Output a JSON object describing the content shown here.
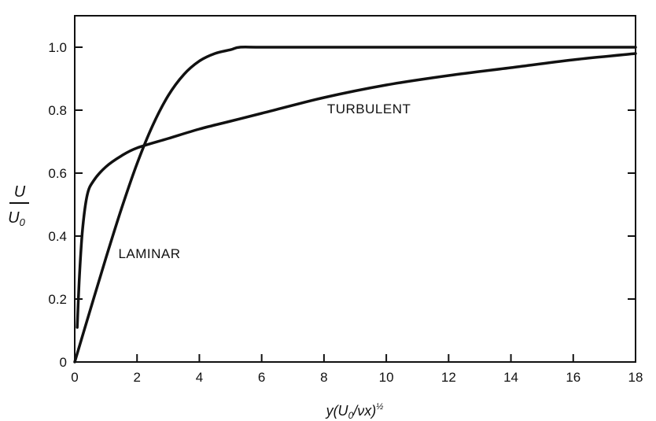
{
  "chart_data": {
    "type": "line",
    "xlabel": {
      "parts": [
        "y(U",
        "0",
        "/νx)",
        "½"
      ]
    },
    "ylabel": {
      "numerator": "U",
      "denominator": "U",
      "denominator_sub": "0"
    },
    "xlim": [
      0,
      18
    ],
    "ylim": [
      0,
      1.1
    ],
    "xticks": [
      0,
      2,
      4,
      6,
      8,
      10,
      12,
      14,
      16,
      18
    ],
    "xtick_labels": [
      "0",
      "2",
      "4",
      "6",
      "8",
      "10",
      "12",
      "14",
      "16",
      "18"
    ],
    "yticks": [
      0,
      0.2,
      0.4,
      0.6,
      0.8,
      1.0
    ],
    "ytick_labels": [
      "0",
      "0.2",
      "0.4",
      "0.6",
      "0.8",
      "1.0"
    ],
    "grid": false,
    "series": [
      {
        "name": "LAMINAR",
        "label": "LAMINAR",
        "label_at": [
          1.4,
          0.33
        ],
        "x": [
          0,
          0.5,
          1.0,
          1.5,
          2.0,
          2.5,
          3.0,
          3.5,
          4.0,
          4.5,
          5.0,
          5.3,
          6,
          8,
          10,
          12,
          14,
          16,
          18
        ],
        "y": [
          0,
          0.166,
          0.33,
          0.487,
          0.63,
          0.751,
          0.846,
          0.913,
          0.956,
          0.98,
          0.992,
          1.0,
          1.0,
          1.0,
          1.0,
          1.0,
          1.0,
          1.0,
          1.0
        ]
      },
      {
        "name": "TURBULENT",
        "label": "TURBULENT",
        "label_at": [
          8.1,
          0.79
        ],
        "x": [
          0.08,
          0.15,
          0.25,
          0.4,
          0.6,
          1.0,
          1.5,
          2.0,
          3.0,
          4.0,
          5.0,
          6.0,
          8.0,
          10.0,
          12.0,
          14.0,
          16.0,
          18.0
        ],
        "y": [
          0.11,
          0.27,
          0.42,
          0.53,
          0.575,
          0.62,
          0.655,
          0.68,
          0.71,
          0.74,
          0.765,
          0.79,
          0.84,
          0.88,
          0.91,
          0.935,
          0.96,
          0.98
        ]
      }
    ]
  }
}
